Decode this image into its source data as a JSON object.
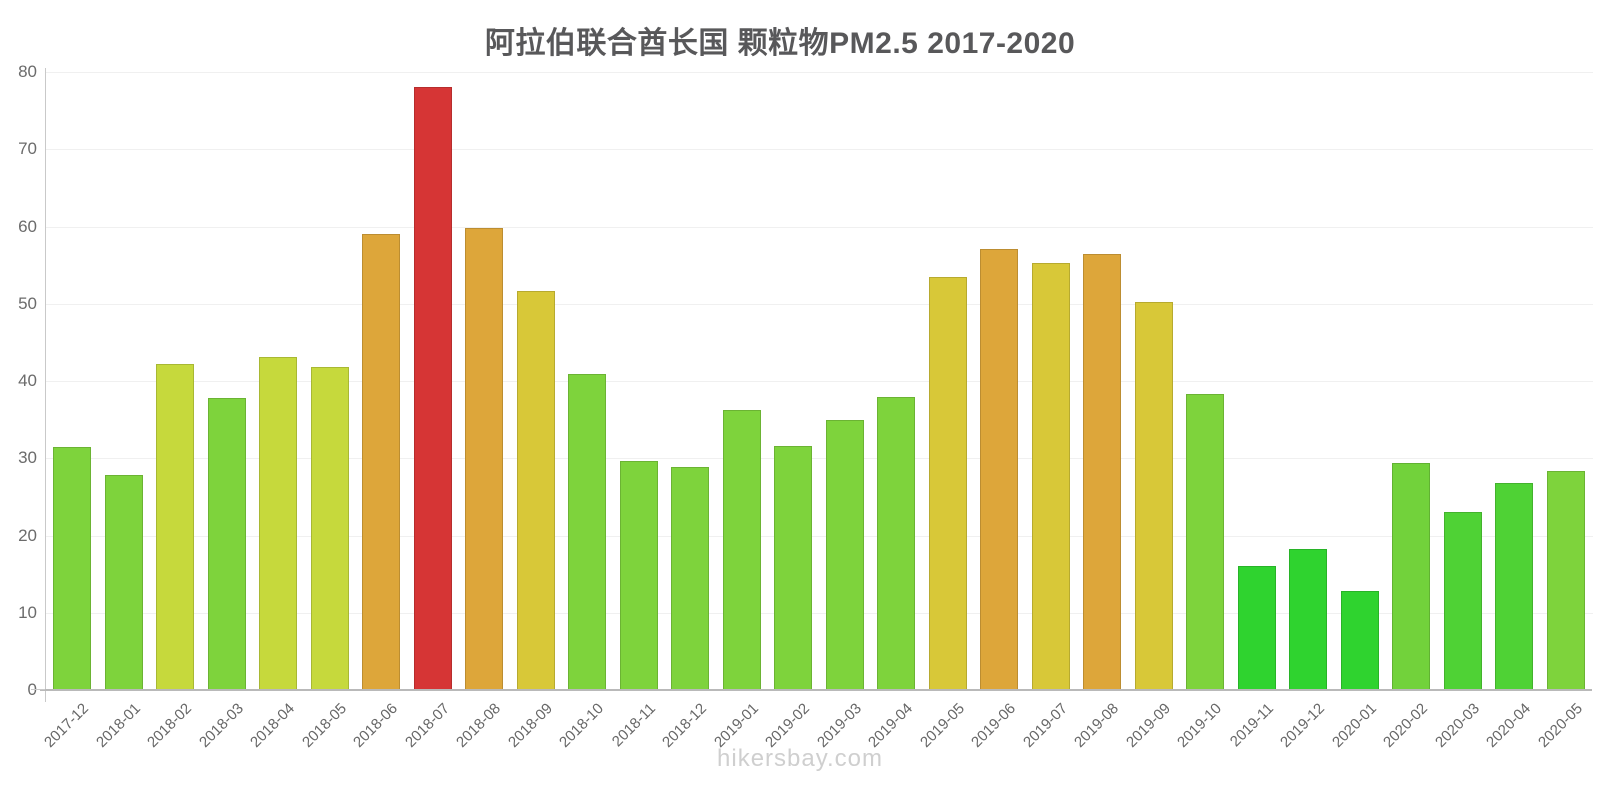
{
  "chart_data": {
    "type": "bar",
    "title": "阿拉伯联合酋长国 颗粒物PM2.5 2017-2020",
    "watermark": "hikersbay.com",
    "xlabel": "",
    "ylabel": "",
    "ylim": [
      0,
      80
    ],
    "ytick_step": 10,
    "grid": true,
    "legend": false,
    "categories": [
      "2017-12",
      "2018-01",
      "2018-02",
      "2018-03",
      "2018-04",
      "2018-05",
      "2018-06",
      "2018-07",
      "2018-08",
      "2018-09",
      "2018-10",
      "2018-11",
      "2018-12",
      "2019-01",
      "2019-02",
      "2019-03",
      "2019-04",
      "2019-05",
      "2019-06",
      "2019-07",
      "2019-08",
      "2019-09",
      "2019-10",
      "2019-11",
      "2019-12",
      "2020-01",
      "2020-02",
      "2020-03",
      "2020-04",
      "2020-05"
    ],
    "values": [
      31.4,
      27.8,
      42.2,
      37.8,
      43.1,
      41.8,
      59.0,
      78.0,
      59.8,
      51.7,
      40.9,
      29.6,
      28.9,
      36.2,
      31.6,
      35.0,
      37.9,
      53.5,
      57.1,
      55.3,
      56.5,
      50.2,
      38.3,
      16.1,
      18.2,
      12.8,
      29.4,
      23.1,
      26.8,
      28.4
    ],
    "colors": [
      "#7ed33c",
      "#7ed33c",
      "#c6d93c",
      "#7ed33c",
      "#c6d93c",
      "#c6d93c",
      "#dda63a",
      "#d63535",
      "#dda63a",
      "#d8c838",
      "#7ed33c",
      "#7ed33c",
      "#7ed33c",
      "#7ed33c",
      "#7ed33c",
      "#7ed33c",
      "#7ed33c",
      "#d8c838",
      "#dda63a",
      "#d8c838",
      "#dda63a",
      "#d8c838",
      "#7ed33c",
      "#2fd32f",
      "#2fd32f",
      "#2fd32f",
      "#72d23b",
      "#4fd235",
      "#4fd235",
      "#7ed33c"
    ],
    "style_colors": {
      "title_color": "#58585a",
      "axis_label_color": "#6b6b6b",
      "x_label_color": "#666666",
      "grid_color": "#f0f0f0",
      "axis_line_color": "#b9b9b9",
      "watermark_color": "#cfcfcf"
    }
  }
}
